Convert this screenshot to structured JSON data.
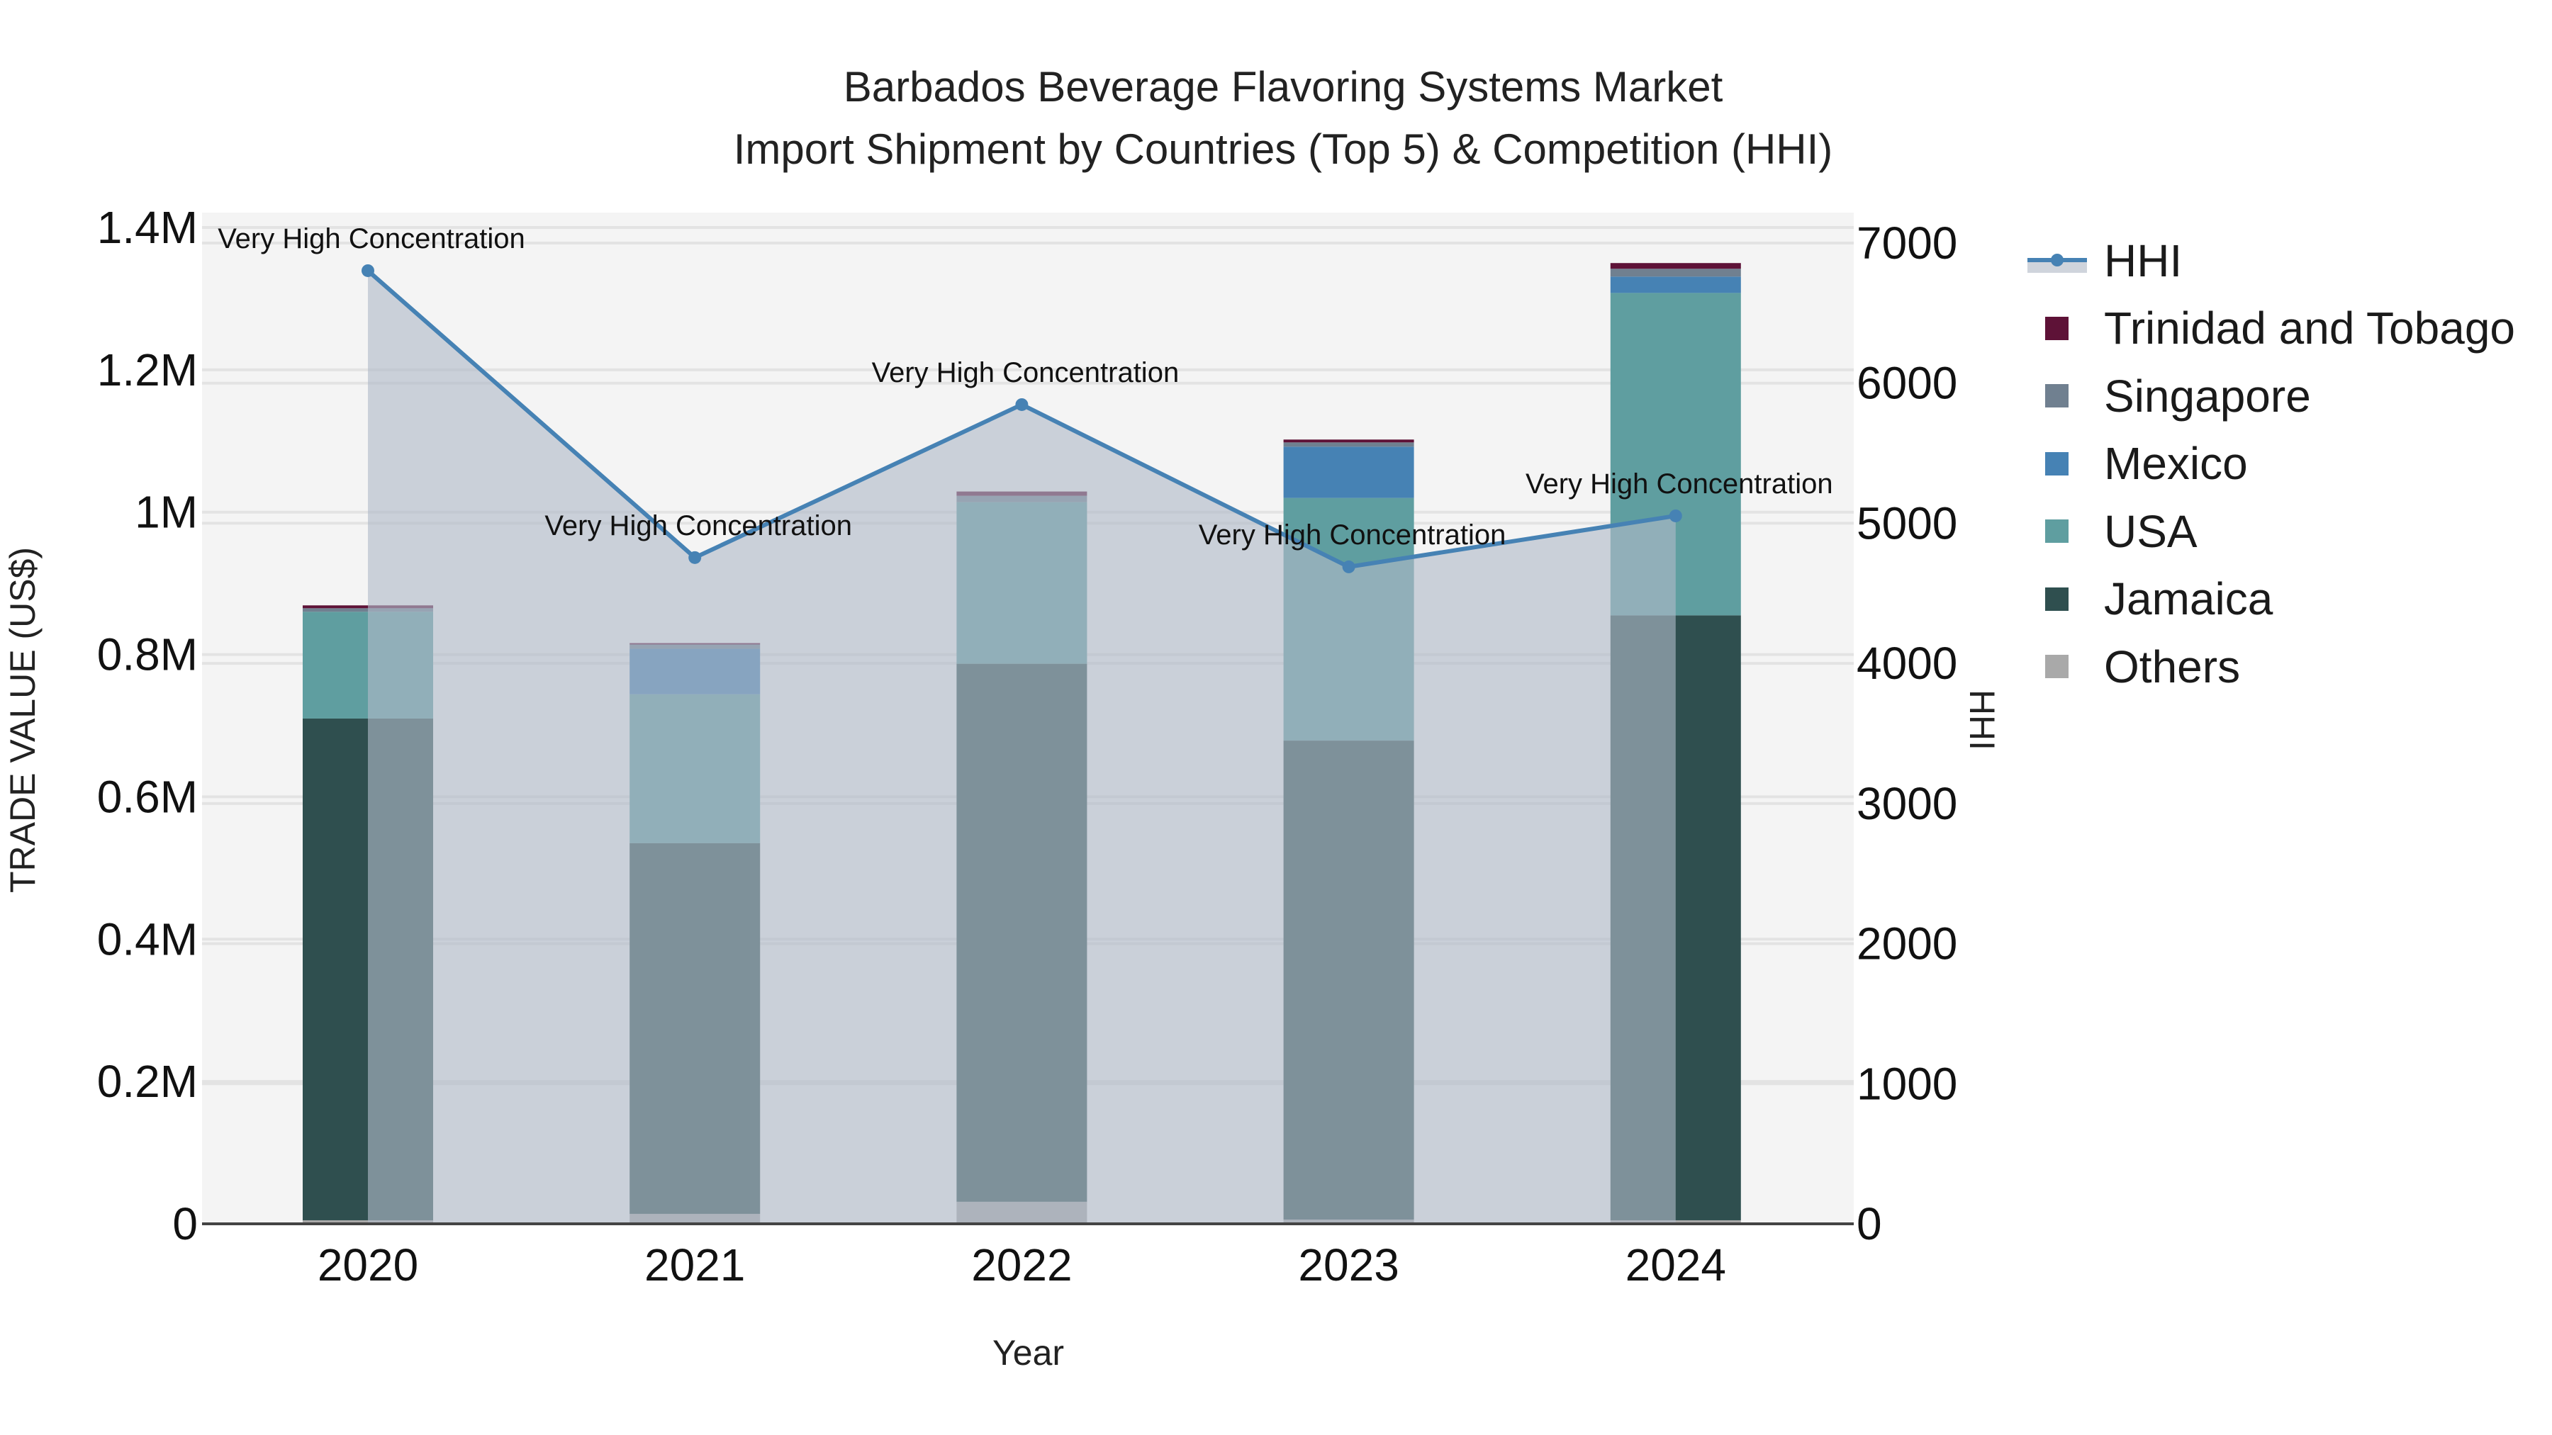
{
  "title": {
    "line1": "Barbados Beverage Flavoring Systems Market",
    "line2": "Import Shipment by Countries (Top 5) & Competition (HHI)"
  },
  "axes": {
    "x_title": "Year",
    "y_left_title": "TRADE VALUE (US$)",
    "y_right_title": "HHI",
    "y_left_ticks": [
      "0",
      "0.2M",
      "0.4M",
      "0.6M",
      "0.8M",
      "1M",
      "1.2M",
      "1.4M"
    ],
    "y_right_ticks": [
      "0",
      "1000",
      "2000",
      "3000",
      "4000",
      "5000",
      "6000",
      "7000"
    ]
  },
  "legend": {
    "items": [
      {
        "label": "HHI",
        "type": "line",
        "color": "#4682b4"
      },
      {
        "label": "Trinidad and Tobago",
        "type": "bar",
        "color": "#5e1237"
      },
      {
        "label": "Singapore",
        "type": "bar",
        "color": "#708090"
      },
      {
        "label": "Mexico",
        "type": "bar",
        "color": "#4682b4"
      },
      {
        "label": "USA",
        "type": "bar",
        "color": "#5f9ea0"
      },
      {
        "label": "Jamaica",
        "type": "bar",
        "color": "#2f4f4f"
      },
      {
        "label": "Others",
        "type": "bar",
        "color": "#a9a9a9"
      }
    ]
  },
  "chart_data": {
    "type": "bar",
    "subtype": "stacked bar + line (dual axis)",
    "title": "Barbados Beverage Flavoring Systems Market — Import Shipment by Countries (Top 5) & Competition (HHI)",
    "xlabel": "Year",
    "ylabel": "TRADE VALUE (US$)",
    "y2label": "HHI",
    "categories": [
      "2020",
      "2021",
      "2022",
      "2023",
      "2024"
    ],
    "ylim": [
      0,
      1400000
    ],
    "y2lim": [
      0,
      7000
    ],
    "grid": true,
    "legend_position": "right",
    "series": [
      {
        "name": "Others",
        "color": "#a9a9a9",
        "values": [
          5000,
          14000,
          31000,
          6000,
          5000
        ]
      },
      {
        "name": "Jamaica",
        "color": "#2f4f4f",
        "values": [
          705000,
          521000,
          756000,
          673000,
          850000
        ]
      },
      {
        "name": "USA",
        "color": "#5f9ea0",
        "values": [
          150000,
          209000,
          227000,
          341000,
          453000
        ]
      },
      {
        "name": "Mexico",
        "color": "#4682b4",
        "values": [
          0,
          64000,
          0,
          72000,
          23000
        ]
      },
      {
        "name": "Singapore",
        "color": "#708090",
        "values": [
          5000,
          6000,
          9000,
          6000,
          11000
        ]
      },
      {
        "name": "Trinidad and Tobago",
        "color": "#5e1237",
        "values": [
          4000,
          2000,
          6000,
          4000,
          8000
        ]
      }
    ],
    "line_series": {
      "name": "HHI",
      "axis": "right",
      "color": "#4682b4",
      "values": [
        6803,
        4755,
        5847,
        4689,
        5053
      ],
      "annotations": [
        "Very High Concentration",
        "Very High Concentration",
        "Very High Concentration",
        "Very High Concentration",
        "Very High Concentration"
      ]
    }
  }
}
